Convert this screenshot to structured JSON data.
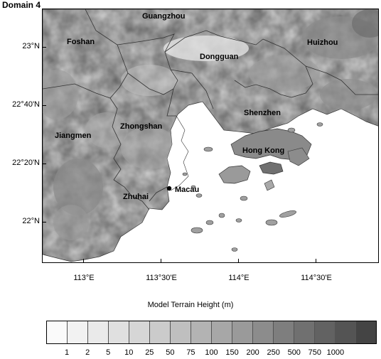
{
  "title": "Domain 4",
  "cities": {
    "guangzhou": "Guangzhou",
    "foshan": "Foshan",
    "huizhou": "Huizhou",
    "dongguan": "Dongguan",
    "shenzhen": "Shenzhen",
    "jiangmen": "Jiangmen",
    "zhongshan": "Zhongshan",
    "hongkong": "Hong Kong",
    "macau": "Macau",
    "zhuhai": "Zhuhai"
  },
  "lat_ticks": [
    "23°N",
    "22°40'N",
    "22°20'N",
    "22°N"
  ],
  "lon_ticks": [
    "113°E",
    "113°30'E",
    "114°E",
    "114°30'E"
  ],
  "colorbar": {
    "title": "Model Terrain Height (m)",
    "labels": [
      "1",
      "2",
      "5",
      "10",
      "25",
      "50",
      "75",
      "100",
      "150",
      "200",
      "250",
      "500",
      "750",
      "1000"
    ],
    "colors": [
      "#fafafa",
      "#f2f2f2",
      "#eaeaea",
      "#e0e0e0",
      "#d6d6d6",
      "#cbcbcb",
      "#bfbfbf",
      "#b3b3b3",
      "#a7a7a7",
      "#9a9a9a",
      "#8c8c8c",
      "#7e7e7e",
      "#707070",
      "#626262",
      "#545454",
      "#444444"
    ]
  }
}
